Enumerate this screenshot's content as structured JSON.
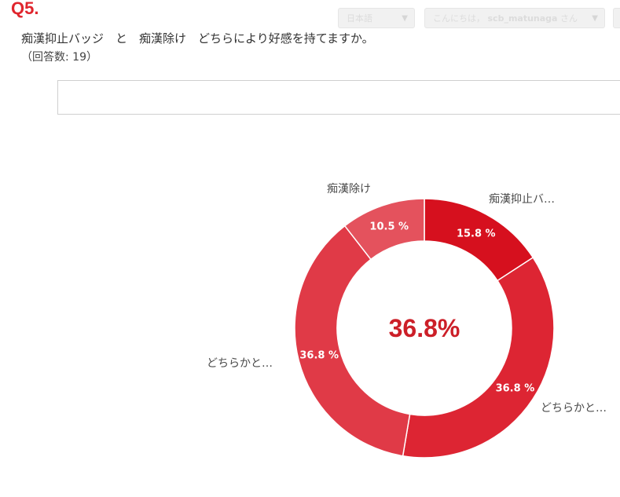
{
  "header": {
    "question_number": "Q5.",
    "question_text": "痴漢抑止バッジ　と　痴漢除け　どちらにより好感を持てますか。",
    "response_count": "（回答数: 19）",
    "language_select": "日本語",
    "greeting": "こんにちは，",
    "user_name": "scb_matunaga",
    "greeting_suffix": "さん"
  },
  "chart_data": {
    "type": "pie",
    "variant": "donut",
    "center_value": "36.8%",
    "slices": [
      {
        "label": "痴漢抑止バ…",
        "value": 15.8,
        "value_label": "15.8 %",
        "color": "#d6101e"
      },
      {
        "label": "どちらかと…",
        "value": 36.8,
        "value_label": "36.8 %",
        "color": "#dd2533"
      },
      {
        "label": "どちらかと…",
        "value": 36.8,
        "value_label": "36.8 %",
        "color": "#e03a47"
      },
      {
        "label": "痴漢除け",
        "value": 10.5,
        "value_label": "10.5 %",
        "color": "#e4525d"
      }
    ]
  }
}
